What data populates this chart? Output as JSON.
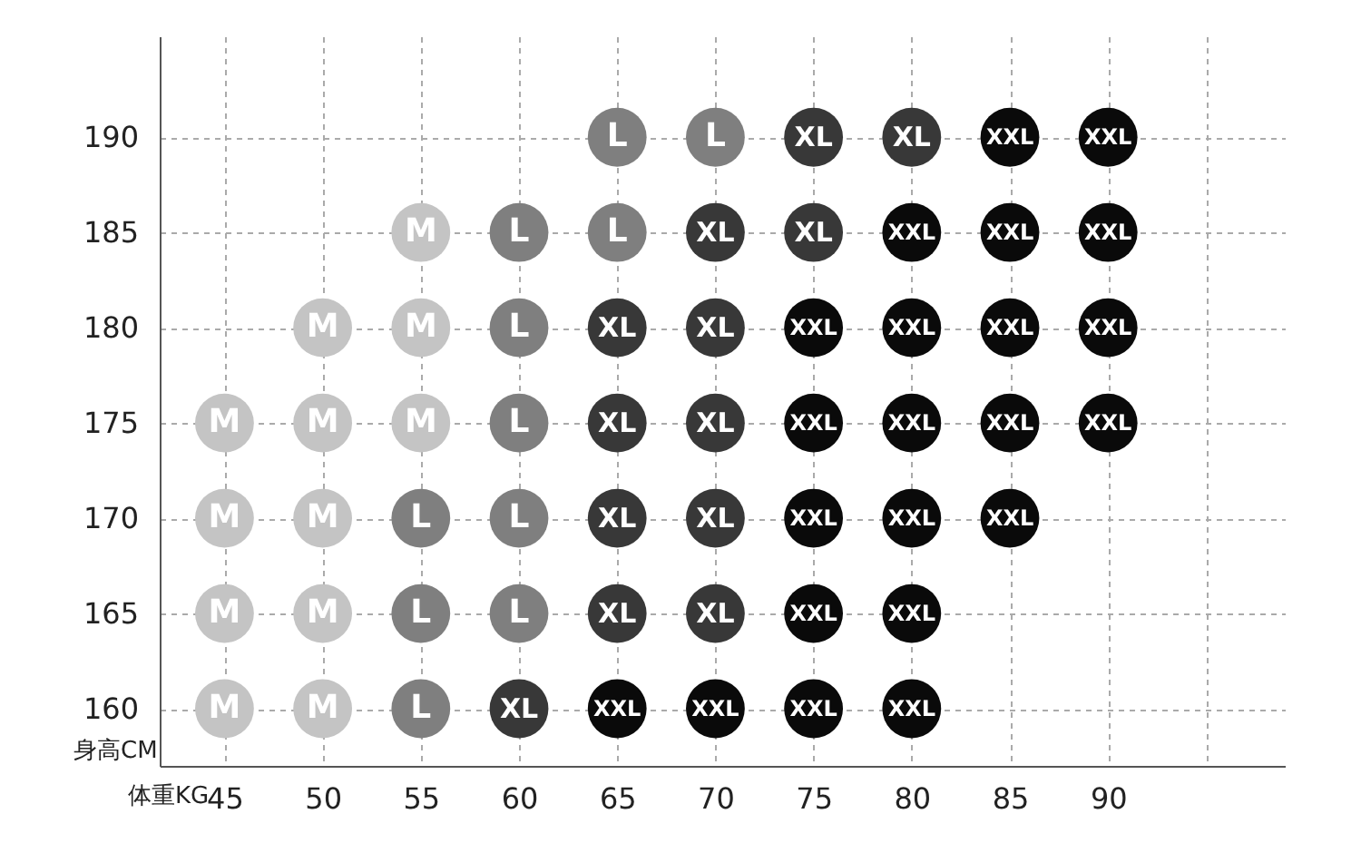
{
  "chart_data": {
    "type": "scatter",
    "xlabel": "体重KG",
    "ylabel": "身高CM",
    "xlim": [
      41.7,
      99
    ],
    "ylim": [
      157,
      195.3
    ],
    "xticks": [
      45,
      50,
      55,
      60,
      65,
      70,
      75,
      80,
      85,
      90,
      {
        "value": 95,
        "label": null
      }
    ],
    "yticks": [
      160,
      165,
      170,
      175,
      180,
      185,
      190
    ],
    "grid": true,
    "marker": "circle",
    "series": [
      {
        "name": "M",
        "color": "#c4c4c4",
        "x": [
          55,
          50,
          55,
          45,
          50,
          55,
          45,
          50,
          45,
          50,
          45,
          50
        ],
        "values": [
          185,
          180,
          180,
          175,
          175,
          175,
          170,
          170,
          165,
          165,
          160,
          160
        ]
      },
      {
        "name": "L",
        "color": "#7f7f7f",
        "x": [
          65,
          70,
          60,
          65,
          60,
          60,
          55,
          60,
          55,
          60,
          55
        ],
        "values": [
          190,
          190,
          185,
          185,
          180,
          175,
          170,
          170,
          165,
          165,
          160
        ]
      },
      {
        "name": "XL",
        "color": "#383838",
        "x": [
          75,
          80,
          70,
          75,
          65,
          70,
          65,
          70,
          65,
          70,
          65,
          70,
          60
        ],
        "values": [
          190,
          190,
          185,
          185,
          180,
          180,
          175,
          175,
          170,
          170,
          165,
          165,
          160
        ]
      },
      {
        "name": "XXL",
        "color": "#0a0a0a",
        "x": [
          85,
          90,
          80,
          85,
          90,
          75,
          80,
          85,
          90,
          75,
          80,
          85,
          90,
          75,
          80,
          85,
          75,
          80,
          65,
          70,
          75,
          80
        ],
        "values": [
          190,
          190,
          185,
          185,
          185,
          180,
          180,
          180,
          180,
          175,
          175,
          175,
          175,
          170,
          170,
          170,
          165,
          165,
          160,
          160,
          160,
          160
        ]
      }
    ]
  }
}
